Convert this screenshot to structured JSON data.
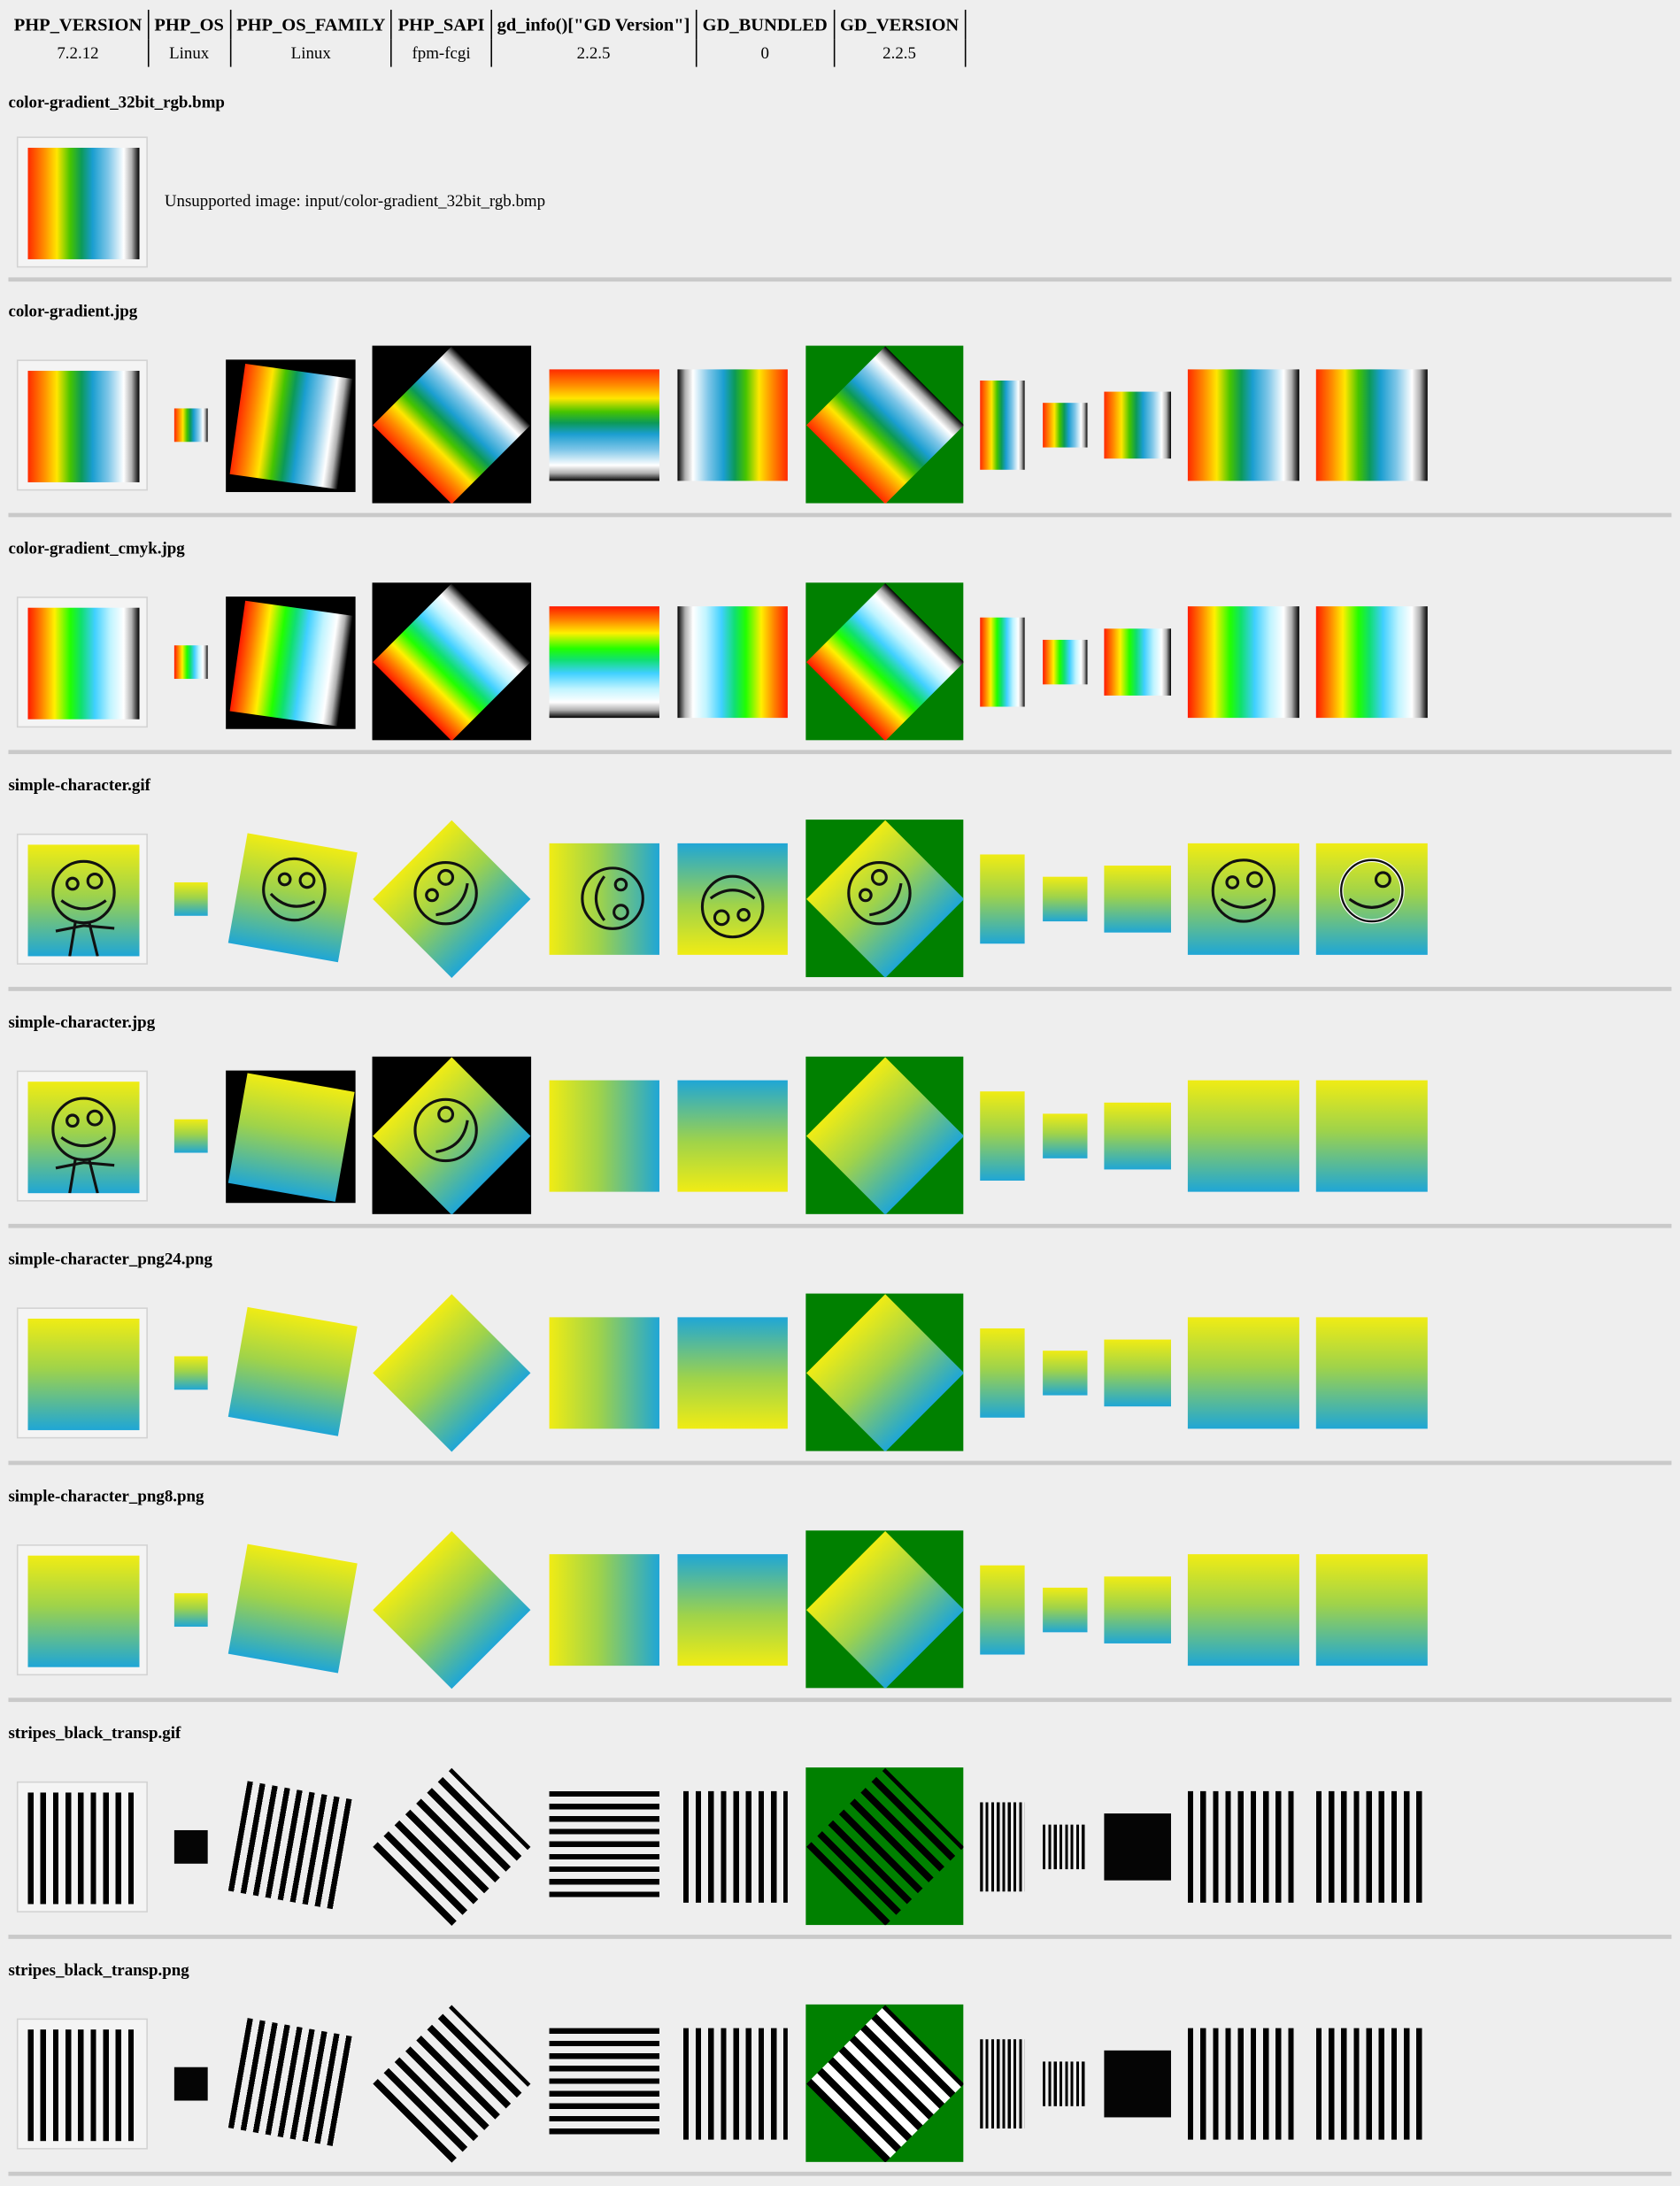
{
  "info_table": {
    "headers": [
      "PHP_VERSION",
      "PHP_OS",
      "PHP_OS_FAMILY",
      "PHP_SAPI",
      "gd_info()[\"GD Version\"]",
      "GD_BUNDLED",
      "GD_VERSION"
    ],
    "values": [
      "7.2.12",
      "Linux",
      "Linux",
      "fpm-fcgi",
      "2.2.5",
      "0",
      "2.2.5"
    ]
  },
  "sections": [
    {
      "title": "color-gradient_32bit_rgb.bmp",
      "message": "Unsupported image: input/color-gradient_32bit_rgb.bmp"
    },
    {
      "title": "color-gradient.jpg"
    },
    {
      "title": "color-gradient_cmyk.jpg"
    },
    {
      "title": "simple-character.gif"
    },
    {
      "title": "simple-character.jpg"
    },
    {
      "title": "simple-character_png24.png"
    },
    {
      "title": "simple-character_png8.png"
    },
    {
      "title": "stripes_black_transp.gif"
    },
    {
      "title": "stripes_black_transp.png"
    }
  ],
  "colors": {
    "background": "#eeeeee",
    "separator": "#c9c9c9",
    "rotate_fill_green": "#008000"
  }
}
